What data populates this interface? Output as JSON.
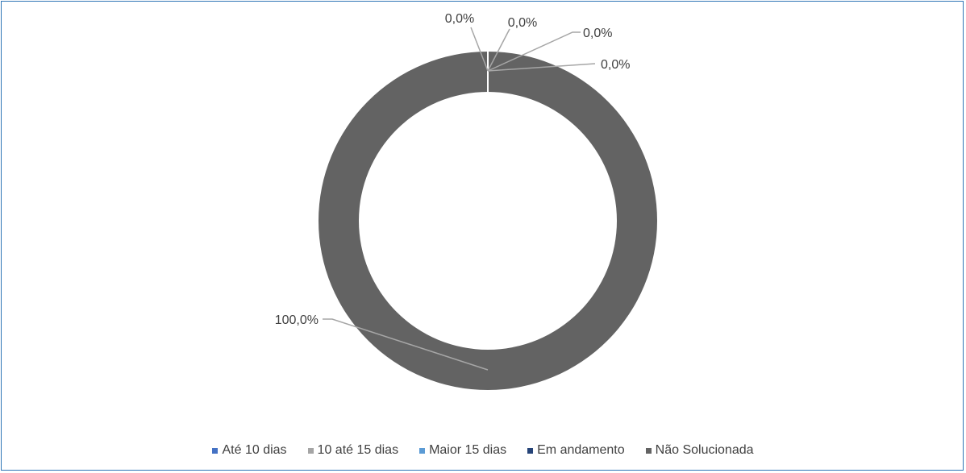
{
  "chart_data": {
    "type": "pie",
    "title": "",
    "donut": true,
    "legend_position": "bottom",
    "categories": [
      "Até 10 dias",
      "10 até 15 dias",
      "Maior 15 dias",
      "Em andamento",
      "Não Solucionada"
    ],
    "values": [
      0.0,
      0.0,
      0.0,
      0.0,
      100.0
    ],
    "value_unit": "%",
    "data_labels": [
      "0,0%",
      "0,0%",
      "0,0%",
      "0,0%",
      "100,0%"
    ],
    "colors": [
      "#4472c4",
      "#a5a5a5",
      "#5b9bd5",
      "#264478",
      "#636363"
    ]
  }
}
